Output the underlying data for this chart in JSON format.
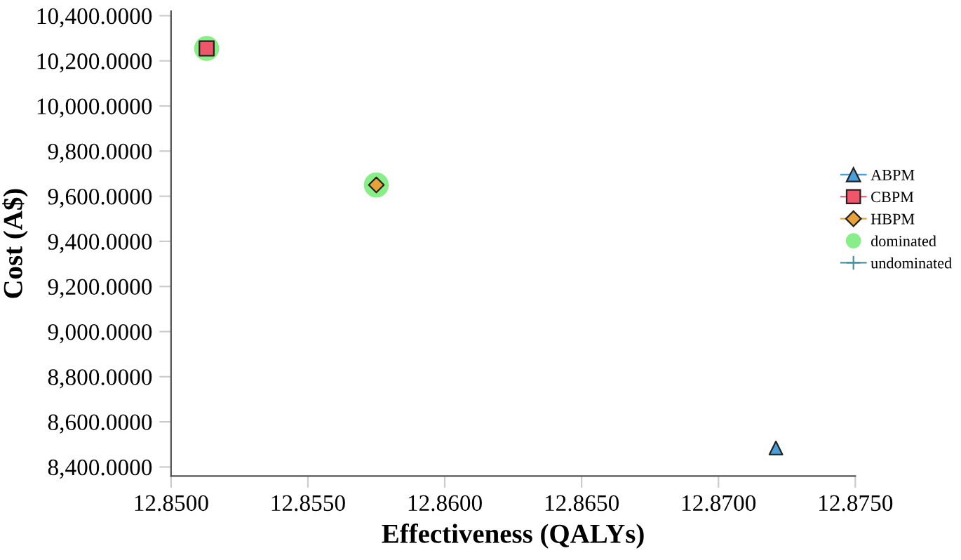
{
  "chart_data": {
    "type": "scatter",
    "xlabel": "Effectiveness (QALYs)",
    "ylabel": "Cost (A$)",
    "xlim": [
      12.85,
      12.875
    ],
    "ylim": [
      8360,
      10420
    ],
    "xticks": [
      {
        "value": 12.85,
        "label": "12.8500"
      },
      {
        "value": 12.855,
        "label": "12.8550"
      },
      {
        "value": 12.86,
        "label": "12.8600"
      },
      {
        "value": 12.865,
        "label": "12.8650"
      },
      {
        "value": 12.87,
        "label": "12.8700"
      },
      {
        "value": 12.875,
        "label": "12.8750"
      }
    ],
    "yticks": [
      {
        "value": 8400,
        "label": "8,400.0000"
      },
      {
        "value": 8600,
        "label": "8,600.0000"
      },
      {
        "value": 8800,
        "label": "8,800.0000"
      },
      {
        "value": 9000,
        "label": "9,000.0000"
      },
      {
        "value": 9200,
        "label": "9,200.0000"
      },
      {
        "value": 9400,
        "label": "9,400.0000"
      },
      {
        "value": 9600,
        "label": "9,600.0000"
      },
      {
        "value": 9800,
        "label": "9,800.0000"
      },
      {
        "value": 10000,
        "label": "10,000.0000"
      },
      {
        "value": 10200,
        "label": "10,200.0000"
      },
      {
        "value": 10400,
        "label": "10,400.0000"
      }
    ],
    "grid": false,
    "legend": "right",
    "series": [
      {
        "name": "dominated",
        "color": "#88ee88",
        "marker": "circle",
        "x": [
          12.8513,
          12.8575
        ],
        "values": [
          10255,
          9650
        ]
      },
      {
        "name": "undominated",
        "color": "#4a8fa0",
        "marker": "cross"
      },
      {
        "name": "ABPM",
        "color": "#4a9fd8",
        "marker": "triangle",
        "x": [
          12.8721
        ],
        "values": [
          8484
        ]
      },
      {
        "name": "CBPM",
        "color": "#f0566a",
        "marker": "square",
        "x": [
          12.8513
        ],
        "values": [
          10255
        ]
      },
      {
        "name": "HBPM",
        "color": "#e8a23a",
        "marker": "diamond",
        "x": [
          12.8575
        ],
        "values": [
          9650
        ]
      }
    ]
  }
}
